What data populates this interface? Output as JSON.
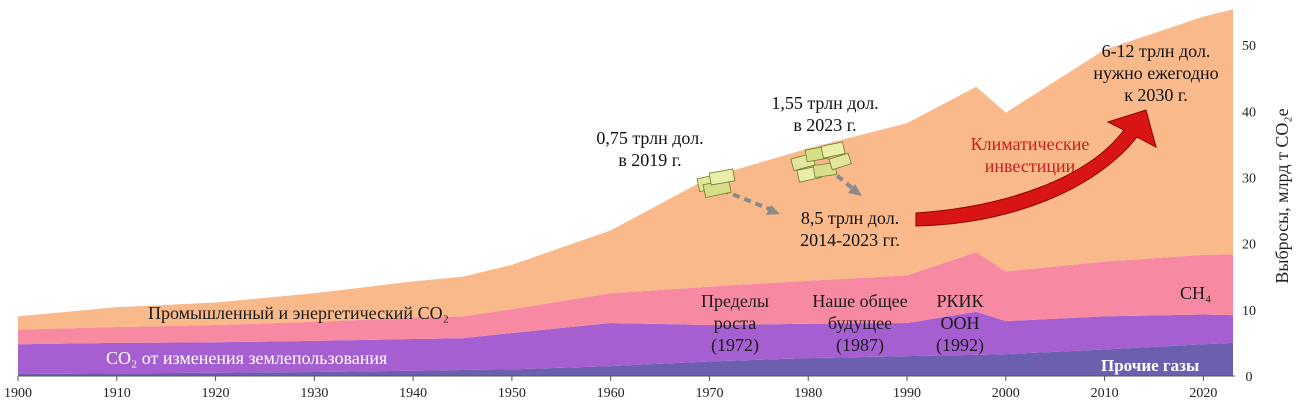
{
  "chart_data": {
    "type": "area",
    "stacked": true,
    "title": "",
    "xlabel": "",
    "ylabel": "Выбросы, млрд т CO₂e",
    "xlim": [
      1900,
      2023
    ],
    "ylim": [
      0,
      55
    ],
    "y_axis_side": "right",
    "x_ticks": [
      1900,
      1910,
      1920,
      1930,
      1940,
      1950,
      1960,
      1970,
      1980,
      1990,
      2000,
      2010,
      2020
    ],
    "y_ticks": [
      0,
      10,
      20,
      30,
      40,
      50
    ],
    "grid": false,
    "x": [
      1900,
      1910,
      1920,
      1930,
      1940,
      1945,
      1950,
      1960,
      1970,
      1980,
      1990,
      1997,
      2000,
      2010,
      2020,
      2023
    ],
    "series": [
      {
        "name": "Прочие газы",
        "color": "#6c5fb0",
        "values": [
          0.3,
          0.4,
          0.5,
          0.6,
          0.8,
          0.9,
          1.0,
          1.5,
          2.2,
          2.7,
          3.0,
          3.2,
          3.3,
          4.0,
          4.8,
          5.0
        ]
      },
      {
        "name": "CO₂ от изменения землепользования",
        "color": "#a55fd0",
        "values": [
          4.5,
          4.6,
          4.6,
          4.7,
          4.8,
          4.8,
          5.5,
          6.5,
          5.5,
          5.2,
          5.0,
          6.5,
          5.0,
          5.0,
          4.5,
          4.2
        ]
      },
      {
        "name": "CH₄",
        "color": "#f78aa2",
        "values": [
          2.2,
          2.4,
          2.6,
          2.9,
          3.2,
          3.3,
          3.6,
          4.5,
          5.8,
          6.5,
          7.2,
          9.0,
          7.5,
          8.3,
          9.0,
          9.2
        ]
      },
      {
        "name": "Промышленный и энергетический CO₂",
        "color": "#f9b98a",
        "values": [
          2.0,
          3.0,
          3.4,
          4.3,
          5.5,
          6.0,
          6.7,
          9.5,
          16.5,
          20.0,
          23.0,
          25.0,
          24.0,
          32.0,
          36.0,
          37.0
        ]
      }
    ],
    "annotations": {
      "invest_2019": [
        "0,75 трлн дол.",
        "в 2019 г."
      ],
      "invest_2023": [
        "1,55 трлн дол.",
        "в 2023 г."
      ],
      "invest_total": [
        "8,5 трлн дол.",
        "2014-2023 гг."
      ],
      "invest_needed": [
        "6-12 трлн дол.",
        "нужно ежегодно",
        "к 2030 г."
      ],
      "climate_invest": [
        "Климатические",
        "инвестиции"
      ],
      "limits_to_growth": [
        "Пределы",
        "роста",
        "(1972)"
      ],
      "our_common_future": [
        "Наше общее",
        "будущее",
        "(1987)"
      ],
      "unfccc": [
        "РКИК",
        "ООН",
        "(1992)"
      ]
    },
    "series_labels": {
      "industrial_co2": "Промышленный и энергетический CO₂",
      "ch4": "CH₄",
      "land_use_co2": "CO₂ от изменения землепользования",
      "other_gases": "Прочие газы"
    }
  }
}
